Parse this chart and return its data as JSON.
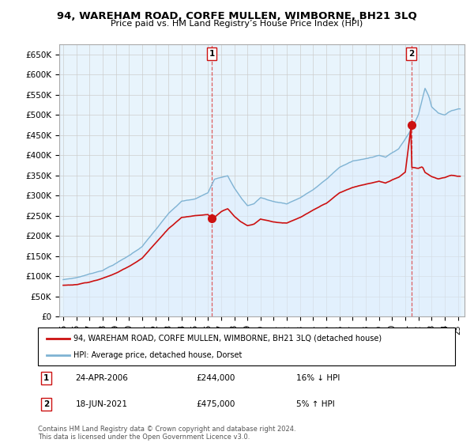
{
  "title": "94, WAREHAM ROAD, CORFE MULLEN, WIMBORNE, BH21 3LQ",
  "subtitle": "Price paid vs. HM Land Registry’s House Price Index (HPI)",
  "ylabel_ticks": [
    "£0",
    "£50K",
    "£100K",
    "£150K",
    "£200K",
    "£250K",
    "£300K",
    "£350K",
    "£400K",
    "£450K",
    "£500K",
    "£550K",
    "£600K",
    "£650K"
  ],
  "ytick_values": [
    0,
    50000,
    100000,
    150000,
    200000,
    250000,
    300000,
    350000,
    400000,
    450000,
    500000,
    550000,
    600000,
    650000
  ],
  "ylim": [
    0,
    675000
  ],
  "sale1_year": 2006.3,
  "sale1_price": 244000,
  "sale1_label": "1",
  "sale2_year": 2021.45,
  "sale2_price": 475000,
  "sale2_label": "2",
  "hpi_color": "#7fb3d3",
  "hpi_fill_color": "#ddeeff",
  "property_color": "#cc1111",
  "dashed_color": "#dd4444",
  "grid_color": "#cccccc",
  "background_color": "#ffffff",
  "plot_bg_color": "#e8f4fc",
  "legend_line1": "94, WAREHAM ROAD, CORFE MULLEN, WIMBORNE, BH21 3LQ (detached house)",
  "legend_line2": "HPI: Average price, detached house, Dorset",
  "annotation1_date": "24-APR-2006",
  "annotation1_price": "£244,000",
  "annotation1_hpi": "16% ↓ HPI",
  "annotation2_date": "18-JUN-2021",
  "annotation2_price": "£475,000",
  "annotation2_hpi": "5% ↑ HPI",
  "footer": "Contains HM Land Registry data © Crown copyright and database right 2024.\nThis data is licensed under the Open Government Licence v3.0.",
  "xmin": 1994.7,
  "xmax": 2025.5,
  "xtick_labels": [
    "95",
    "96",
    "97",
    "98",
    "99",
    "00",
    "01",
    "02",
    "03",
    "04",
    "05",
    "06",
    "07",
    "08",
    "09",
    "10",
    "11",
    "12",
    "13",
    "14",
    "15",
    "16",
    "17",
    "18",
    "19",
    "20",
    "21",
    "22",
    "23",
    "24",
    "25"
  ],
  "xtick_years": [
    1995,
    1996,
    1997,
    1998,
    1999,
    2000,
    2001,
    2002,
    2003,
    2004,
    2005,
    2006,
    2007,
    2008,
    2009,
    2010,
    2011,
    2012,
    2013,
    2014,
    2015,
    2016,
    2017,
    2018,
    2019,
    2020,
    2021,
    2022,
    2023,
    2024,
    2025
  ]
}
